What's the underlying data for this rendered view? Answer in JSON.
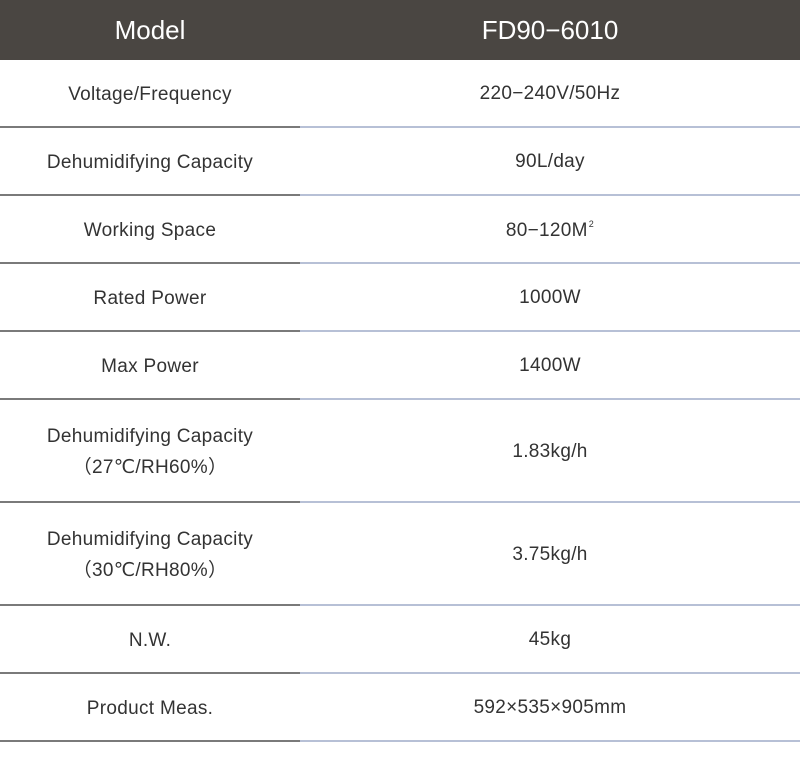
{
  "header": {
    "col1": "Model",
    "col2": "FD90−6010"
  },
  "rows": [
    {
      "label": "Voltage/Frequency",
      "value": "220−240V/50Hz"
    },
    {
      "label": "Dehumidifying Capacity",
      "value": "90L/day"
    },
    {
      "label": "Working Space",
      "value": "80−120M",
      "value_sup": "2"
    },
    {
      "label": "Rated Power",
      "value": "1000W"
    },
    {
      "label": "Max Power",
      "value": "1400W"
    },
    {
      "label": "Dehumidifying Capacity",
      "label_line2": "（27℃/RH60%）",
      "value": "1.83kg/h"
    },
    {
      "label": "Dehumidifying Capacity",
      "label_line2": "（30℃/RH80%）",
      "value": "3.75kg/h"
    },
    {
      "label": "N.W.",
      "value": "45kg"
    },
    {
      "label": "Product Meas.",
      "value": "592×535×905mm"
    }
  ]
}
